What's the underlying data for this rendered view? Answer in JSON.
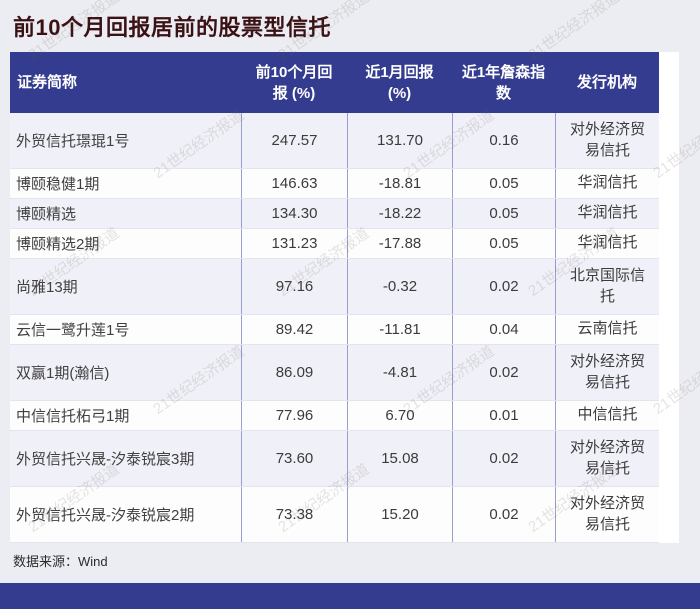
{
  "page": {
    "title": "前10个月回报居前的股票型信托",
    "source_label": "数据来源：Wind",
    "watermark_text": "21世纪经济报道"
  },
  "colors": {
    "header_bg": "#333c8e",
    "bottom_bar_bg": "#333c8e",
    "title_color": "#3a1114",
    "page_bg": "#ecedf3",
    "row_alt_bg": "#f0f0f8",
    "row_bg": "#fdfdfe",
    "column_divider": "#97a0cc"
  },
  "chart_data": {
    "type": "table",
    "title": "前10个月回报居前的股票型信托",
    "columns": [
      "证券简称",
      "前10个月回报 (%)",
      "近1月回报 (%)",
      "近1年詹森指数",
      "发行机构"
    ],
    "header_display_lines": [
      "证券简称",
      "前10个月回\n报 (%)",
      "近1月回报\n(%)",
      "近1年詹森指\n数",
      "发行机构"
    ],
    "rows": [
      {
        "name": "外贸信托璟琨1号",
        "ret_10m": 247.57,
        "ret_1m": 131.7,
        "jensen": 0.16,
        "issuer": "对外经济贸易信托"
      },
      {
        "name": "博颐稳健1期",
        "ret_10m": 146.63,
        "ret_1m": -18.81,
        "jensen": 0.05,
        "issuer": "华润信托"
      },
      {
        "name": "博颐精选",
        "ret_10m": 134.3,
        "ret_1m": -18.22,
        "jensen": 0.05,
        "issuer": "华润信托"
      },
      {
        "name": "博颐精选2期",
        "ret_10m": 131.23,
        "ret_1m": -17.88,
        "jensen": 0.05,
        "issuer": "华润信托"
      },
      {
        "name": "尚雅13期",
        "ret_10m": 97.16,
        "ret_1m": -0.32,
        "jensen": 0.02,
        "issuer": "北京国际信托"
      },
      {
        "name": "云信一鹭升莲1号",
        "ret_10m": 89.42,
        "ret_1m": -11.81,
        "jensen": 0.04,
        "issuer": "云南信托"
      },
      {
        "name": "双赢1期(瀚信)",
        "ret_10m": 86.09,
        "ret_1m": -4.81,
        "jensen": 0.02,
        "issuer": "对外经济贸易信托"
      },
      {
        "name": "中信信托柘弓1期",
        "ret_10m": 77.96,
        "ret_1m": 6.7,
        "jensen": 0.01,
        "issuer": "中信信托"
      },
      {
        "name": "外贸信托兴晟-汐泰锐宸3期",
        "ret_10m": 73.6,
        "ret_1m": 15.08,
        "jensen": 0.02,
        "issuer": "对外经济贸易信托"
      },
      {
        "name": "外贸信托兴晟-汐泰锐宸2期",
        "ret_10m": 73.38,
        "ret_1m": 15.2,
        "jensen": 0.02,
        "issuer": "对外经济贸易信托"
      }
    ],
    "source": "Wind"
  }
}
